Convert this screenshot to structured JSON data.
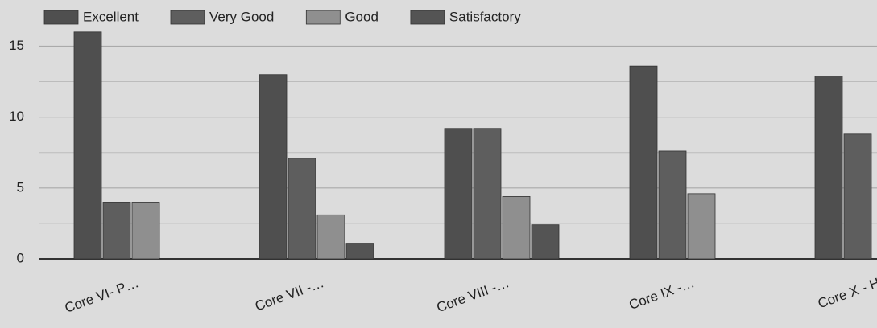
{
  "chart_data": {
    "type": "bar",
    "categories": [
      "Core VI- P…",
      "Core VII -…",
      "Core VIII -…",
      "Core IX -…",
      "Core X - H"
    ],
    "series": [
      {
        "name": "Excellent",
        "color": "#4f4f4f",
        "values": [
          16,
          13,
          9.2,
          13.6,
          12.9
        ]
      },
      {
        "name": "Very Good",
        "color": "#5e5e5e",
        "values": [
          4,
          7.1,
          9.2,
          7.6,
          8.8
        ]
      },
      {
        "name": "Good",
        "color": "#8f8f8f",
        "values": [
          4,
          3.1,
          4.4,
          4.6,
          null
        ]
      },
      {
        "name": "Satisfactory",
        "color": "#545454",
        "values": [
          0,
          1.1,
          2.4,
          0,
          null
        ]
      }
    ],
    "ylim": [
      0,
      16.5
    ],
    "yticks": [
      0,
      5,
      10,
      15
    ],
    "minor_yticks": [
      2.5,
      7.5,
      12.5
    ],
    "grid": true,
    "legend": "top"
  }
}
